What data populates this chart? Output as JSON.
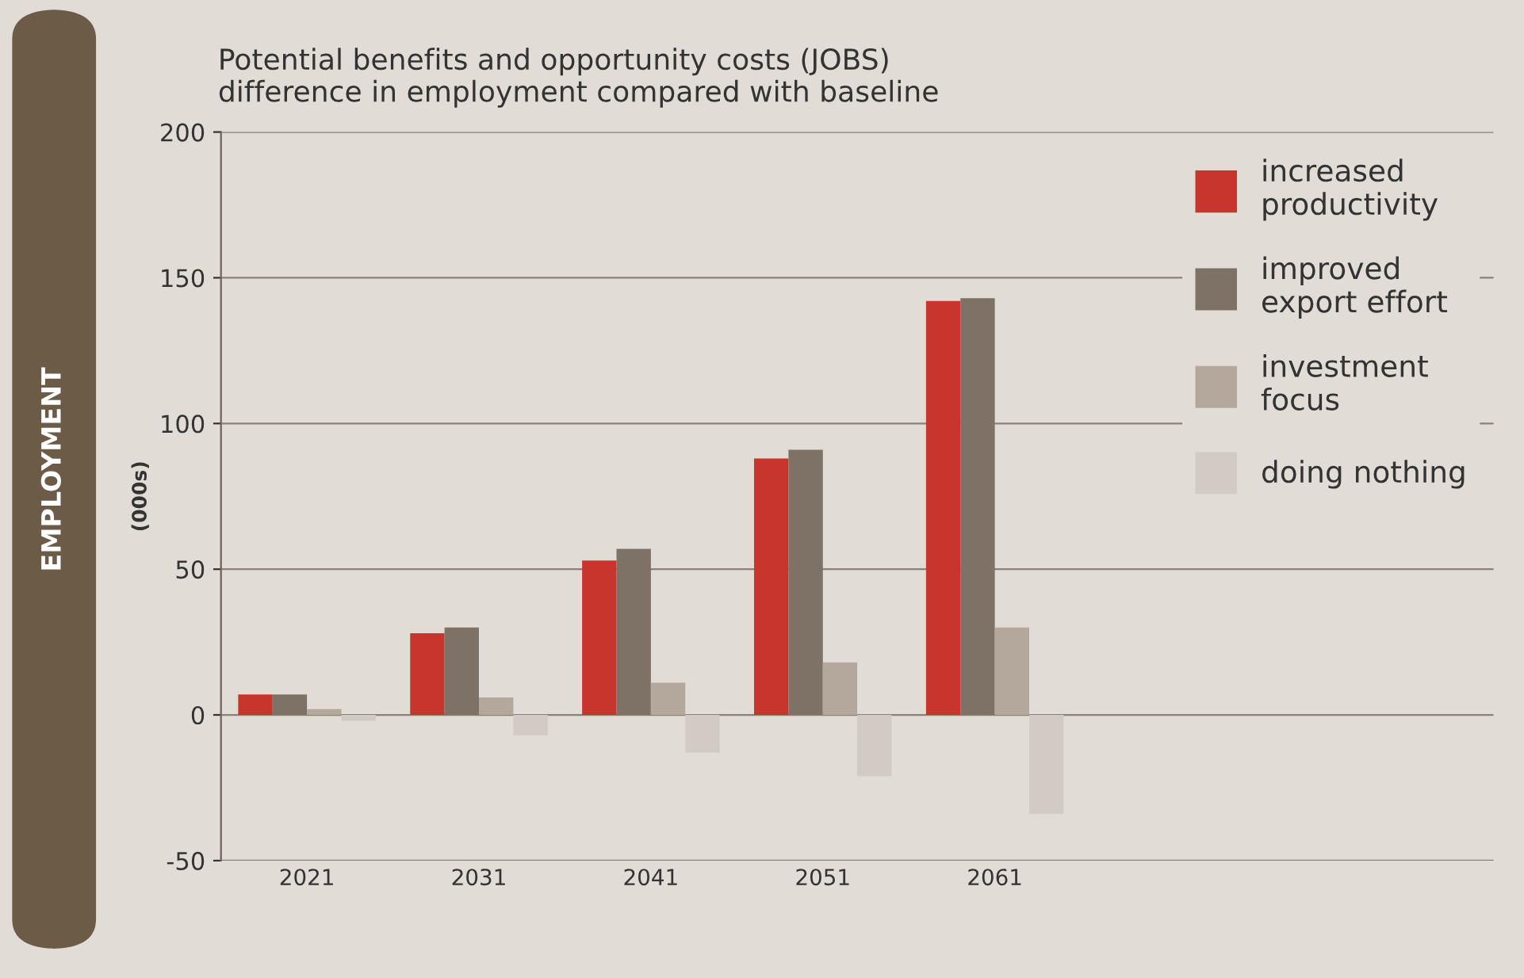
{
  "chart_data": {
    "type": "bar",
    "title": "Potential benefits and opportunity costs (JOBS)\ndifference in employment compared with baseline",
    "ylabel": "(000s)",
    "annotations": [
      "EMPLOYMENT"
    ],
    "categories": [
      "2021",
      "2031",
      "2041",
      "2051",
      "2061"
    ],
    "series": [
      {
        "name": "increased\nproductivity",
        "color": "#c8352c",
        "values": [
          7,
          28,
          53,
          88,
          142
        ]
      },
      {
        "name": "improved\nexport effort",
        "color": "#7d7265",
        "values": [
          7,
          30,
          57,
          91,
          143
        ]
      },
      {
        "name": "investment\nfocus",
        "color": "#b3a89b",
        "values": [
          2,
          6,
          11,
          18,
          30
        ]
      },
      {
        "name": "doing nothing",
        "color": "#d2cbc3",
        "values": [
          -2,
          -7,
          -13,
          -21,
          -34
        ]
      }
    ],
    "ylim": [
      -50,
      200
    ],
    "yticks": [
      -50,
      0,
      50,
      100,
      150,
      200
    ],
    "grid": "y",
    "legend": "top right"
  }
}
